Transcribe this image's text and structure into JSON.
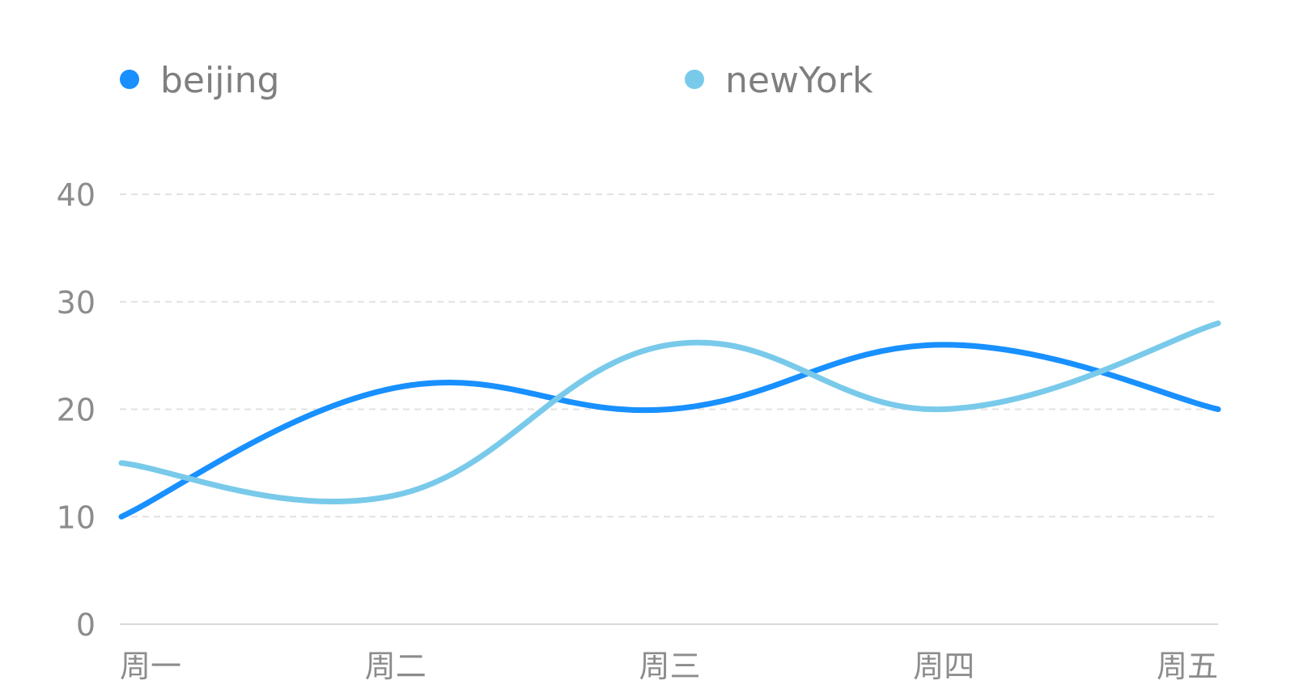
{
  "chart_data": {
    "type": "line",
    "smooth": true,
    "categories": [
      "周一",
      "周二",
      "周三",
      "周四",
      "周五"
    ],
    "series": [
      {
        "name": "beijing",
        "color": "#1890ff",
        "values": [
          10,
          22,
          20,
          26,
          20
        ]
      },
      {
        "name": "newYork",
        "color": "#79caea",
        "values": [
          15,
          12,
          26,
          20,
          28
        ]
      }
    ],
    "yticks": [
      0,
      10,
      20,
      30,
      40
    ],
    "ylim": [
      0,
      40
    ],
    "grid": true,
    "legend": "top"
  }
}
